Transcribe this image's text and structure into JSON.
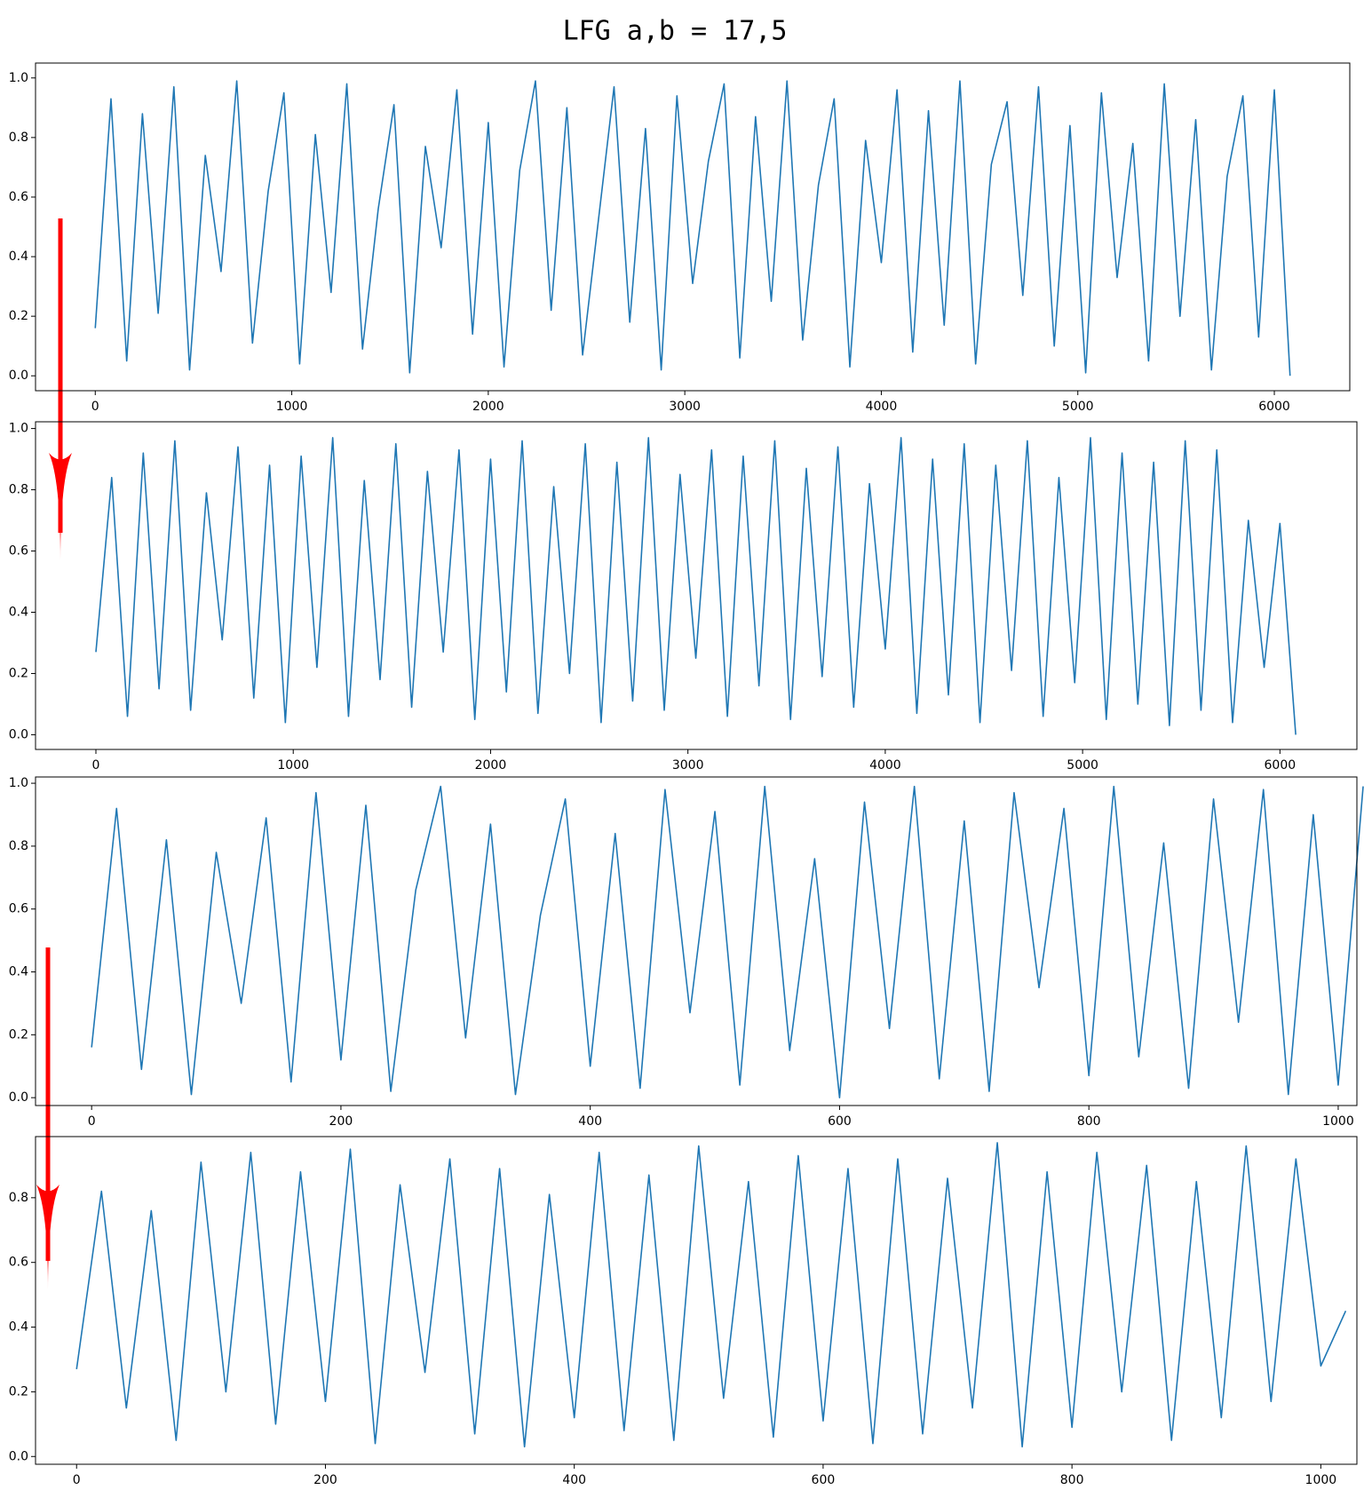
{
  "title": "LFG  a,b = 17,5",
  "chart_data": [
    {
      "type": "line",
      "x": [
        0,
        80,
        160,
        240,
        320,
        400,
        480,
        560,
        640,
        720,
        800,
        880,
        960,
        1040,
        1120,
        1200,
        1280,
        1360,
        1440,
        1520,
        1600,
        1680,
        1760,
        1840,
        1920,
        2000,
        2080,
        2160,
        2240,
        2320,
        2400,
        2480,
        2560,
        2640,
        2720,
        2800,
        2880,
        2960,
        3040,
        3120,
        3200,
        3280,
        3360,
        3440,
        3520,
        3600,
        3680,
        3760,
        3840,
        3920,
        4000,
        4080,
        4160,
        4240,
        4320,
        4400,
        4480,
        4560,
        4640,
        4720,
        4800,
        4880,
        4960,
        5040,
        5120,
        5200,
        5280,
        5360,
        5440,
        5520,
        5600,
        5680,
        5760,
        5840,
        5920,
        6000,
        6080
      ],
      "series": [
        {
          "color": "#1f77b4",
          "values": [
            0.16,
            0.93,
            0.05,
            0.88,
            0.21,
            0.97,
            0.02,
            0.74,
            0.35,
            0.99,
            0.11,
            0.62,
            0.95,
            0.04,
            0.81,
            0.28,
            0.98,
            0.09,
            0.56,
            0.91,
            0.01,
            0.77,
            0.43,
            0.96,
            0.14,
            0.85,
            0.03,
            0.69,
            0.99,
            0.22,
            0.9,
            0.07,
            0.52,
            0.97,
            0.18,
            0.83,
            0.02,
            0.94,
            0.31,
            0.72,
            0.98,
            0.06,
            0.87,
            0.25,
            0.99,
            0.12,
            0.64,
            0.93,
            0.03,
            0.79,
            0.38,
            0.96,
            0.08,
            0.89,
            0.17,
            0.99,
            0.04,
            0.71,
            0.92,
            0.27,
            0.97,
            0.1,
            0.84,
            0.01,
            0.95,
            0.33,
            0.78,
            0.05,
            0.98,
            0.2,
            0.86,
            0.02,
            0.67,
            0.94,
            0.13,
            0.96,
            0.0
          ]
        }
      ],
      "xlim": [
        -304,
        6384
      ],
      "ylim": [
        -0.05,
        1.05
      ],
      "xticks": [
        0,
        1000,
        2000,
        3000,
        4000,
        5000,
        6000
      ],
      "yticks": [
        {
          "value": 0,
          "label": "0.0"
        },
        0.2,
        0.4,
        0.6,
        0.8,
        {
          "value": 1,
          "label": "1.0"
        }
      ]
    },
    {
      "type": "line",
      "x": [
        0,
        80,
        160,
        240,
        320,
        400,
        480,
        560,
        640,
        720,
        800,
        880,
        960,
        1040,
        1120,
        1200,
        1280,
        1360,
        1440,
        1520,
        1600,
        1680,
        1760,
        1840,
        1920,
        2000,
        2080,
        2160,
        2240,
        2320,
        2400,
        2480,
        2560,
        2640,
        2720,
        2800,
        2880,
        2960,
        3040,
        3120,
        3200,
        3280,
        3360,
        3440,
        3520,
        3600,
        3680,
        3760,
        3840,
        3920,
        4000,
        4080,
        4160,
        4240,
        4320,
        4400,
        4480,
        4560,
        4640,
        4720,
        4800,
        4880,
        4960,
        5040,
        5120,
        5200,
        5280,
        5360,
        5440,
        5520,
        5600,
        5680,
        5760,
        5840,
        5920,
        6000,
        6080
      ],
      "series": [
        {
          "color": "#1f77b4",
          "values": [
            0.27,
            0.84,
            0.06,
            0.92,
            0.15,
            0.96,
            0.08,
            0.79,
            0.31,
            0.94,
            0.12,
            0.88,
            0.04,
            0.91,
            0.22,
            0.97,
            0.06,
            0.83,
            0.18,
            0.95,
            0.09,
            0.86,
            0.27,
            0.93,
            0.05,
            0.9,
            0.14,
            0.96,
            0.07,
            0.81,
            0.2,
            0.95,
            0.04,
            0.89,
            0.11,
            0.97,
            0.08,
            0.85,
            0.25,
            0.93,
            0.06,
            0.91,
            0.16,
            0.96,
            0.05,
            0.87,
            0.19,
            0.94,
            0.09,
            0.82,
            0.28,
            0.97,
            0.07,
            0.9,
            0.13,
            0.95,
            0.04,
            0.88,
            0.21,
            0.96,
            0.06,
            0.84,
            0.17,
            0.97,
            0.05,
            0.92,
            0.1,
            0.89,
            0.03,
            0.96,
            0.08,
            0.93,
            0.04,
            0.7,
            0.22,
            0.69,
            0.0
          ]
        }
      ],
      "xlim": [
        -306,
        6390
      ],
      "ylim": [
        -0.048,
        1.022
      ],
      "xticks": [
        0,
        1000,
        2000,
        3000,
        4000,
        5000,
        6000
      ],
      "yticks": [
        {
          "value": 0,
          "label": "0.0"
        },
        0.2,
        0.4,
        0.6,
        0.8,
        {
          "value": 1,
          "label": "1.0"
        }
      ]
    },
    {
      "type": "line",
      "x": [
        0,
        20,
        40,
        60,
        80,
        100,
        120,
        140,
        160,
        180,
        200,
        220,
        240,
        260,
        280,
        300,
        320,
        340,
        360,
        380,
        400,
        420,
        440,
        460,
        480,
        500,
        520,
        540,
        560,
        580,
        600,
        620,
        640,
        660,
        680,
        700,
        720,
        740,
        760,
        780,
        800,
        820,
        840,
        860,
        880,
        900,
        920,
        940,
        960,
        980,
        1000,
        1020
      ],
      "series": [
        {
          "color": "#1f77b4",
          "values": [
            0.16,
            0.92,
            0.09,
            0.82,
            0.01,
            0.78,
            0.3,
            0.89,
            0.05,
            0.97,
            0.12,
            0.93,
            0.02,
            0.66,
            0.99,
            0.19,
            0.87,
            0.01,
            0.58,
            0.95,
            0.1,
            0.84,
            0.03,
            0.98,
            0.27,
            0.91,
            0.04,
            0.99,
            0.15,
            0.76,
            0.0,
            0.94,
            0.22,
            0.99,
            0.06,
            0.88,
            0.02,
            0.97,
            0.35,
            0.92,
            0.07,
            0.99,
            0.13,
            0.81,
            0.03,
            0.95,
            0.24,
            0.98,
            0.01,
            0.9,
            0.04,
            0.99
          ]
        }
      ],
      "xlim": [
        -45,
        1015
      ],
      "ylim": [
        -0.025,
        1.02
      ],
      "xticks": [
        0,
        200,
        400,
        600,
        800,
        1000
      ],
      "yticks": [
        {
          "value": 0,
          "label": "0.0"
        },
        0.2,
        0.4,
        0.6,
        0.8,
        {
          "value": 1,
          "label": "1.0"
        }
      ]
    },
    {
      "type": "line",
      "x": [
        0,
        20,
        40,
        60,
        80,
        100,
        120,
        140,
        160,
        180,
        200,
        220,
        240,
        260,
        280,
        300,
        320,
        340,
        360,
        380,
        400,
        420,
        440,
        460,
        480,
        500,
        520,
        540,
        560,
        580,
        600,
        620,
        640,
        660,
        680,
        700,
        720,
        740,
        760,
        780,
        800,
        820,
        840,
        860,
        880,
        900,
        920,
        940,
        960,
        980,
        1000,
        1020
      ],
      "series": [
        {
          "color": "#1f77b4",
          "values": [
            0.27,
            0.82,
            0.15,
            0.76,
            0.05,
            0.91,
            0.2,
            0.94,
            0.1,
            0.88,
            0.17,
            0.95,
            0.04,
            0.84,
            0.26,
            0.92,
            0.07,
            0.89,
            0.03,
            0.81,
            0.12,
            0.94,
            0.08,
            0.87,
            0.05,
            0.96,
            0.18,
            0.85,
            0.06,
            0.93,
            0.11,
            0.89,
            0.04,
            0.92,
            0.07,
            0.86,
            0.15,
            0.97,
            0.03,
            0.88,
            0.09,
            0.94,
            0.2,
            0.9,
            0.05,
            0.85,
            0.12,
            0.96,
            0.17,
            0.92,
            0.28,
            0.45
          ]
        }
      ],
      "xlim": [
        -33,
        1029
      ],
      "ylim": [
        -0.024,
        0.989
      ],
      "xticks": [
        0,
        200,
        400,
        600,
        800,
        1000
      ],
      "yticks": [
        {
          "value": 0,
          "label": "0.0"
        },
        0.2,
        0.4,
        0.6,
        0.8
      ]
    }
  ]
}
